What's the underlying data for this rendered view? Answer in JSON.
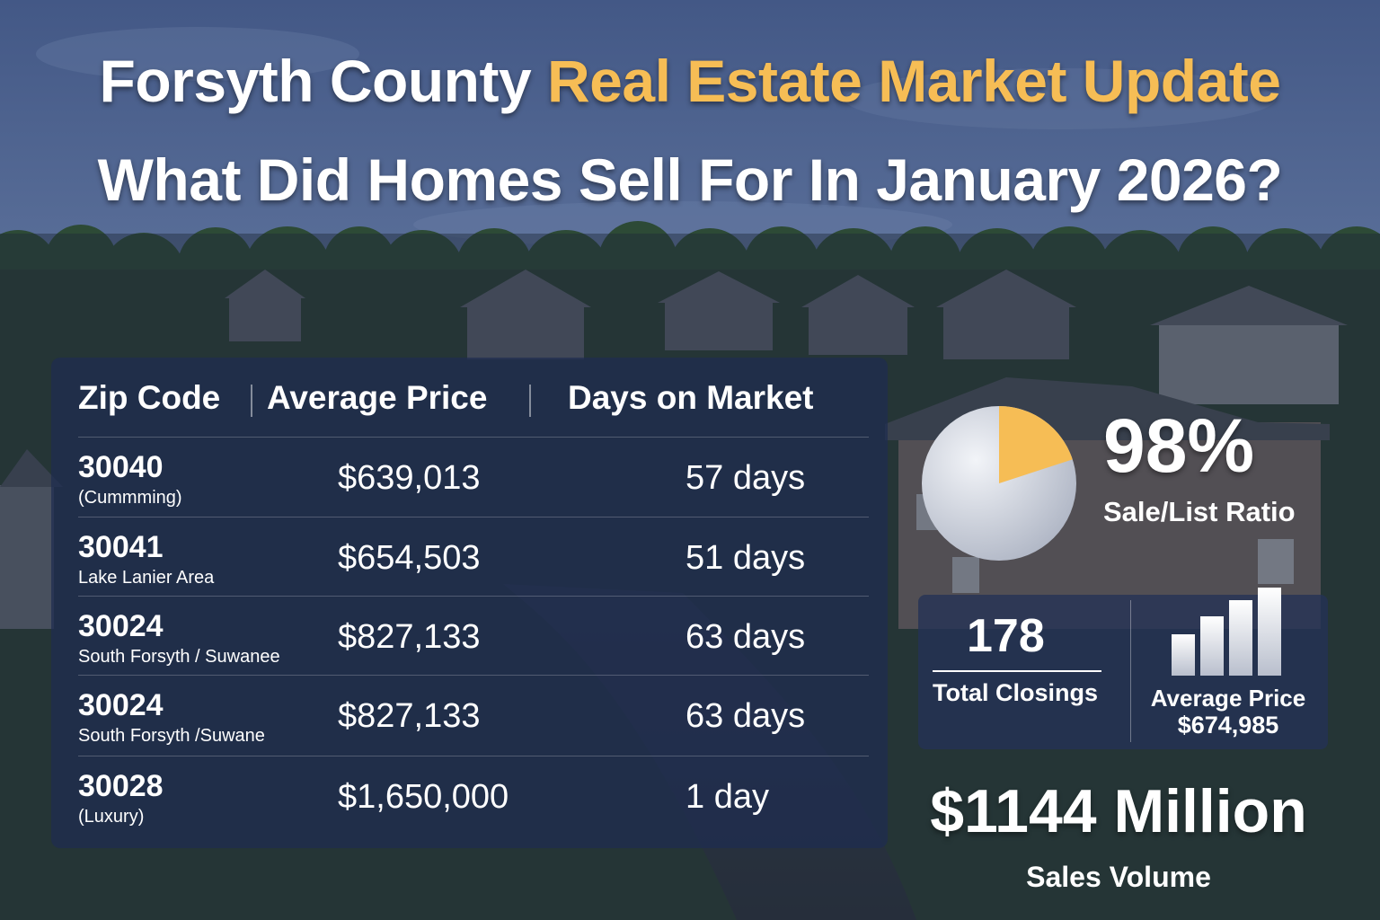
{
  "colors": {
    "accent_gold": "#f6bd55",
    "panel_navy": "#1e2c50",
    "sky_blue": "#44588a",
    "text_white": "#ffffff"
  },
  "header": {
    "line1_part1": "Forsyth County",
    "line1_part2": "Real Estate Market Update",
    "line2": "What Did Homes Sell For In January 2026?"
  },
  "table": {
    "columns": [
      "Zip Code",
      "Average Price",
      "Days on Market"
    ],
    "rows": [
      {
        "zip": "30040",
        "area": "(Cummming)",
        "price": "$639,013",
        "days": "57 days"
      },
      {
        "zip": "30041",
        "area": "Lake Lanier Area",
        "price": "$654,503",
        "days": "51 days"
      },
      {
        "zip": "30024",
        "area": "South Forsyth / Suwanee",
        "price": "$827,133",
        "days": "63 days"
      },
      {
        "zip": "30024",
        "area": "South Forsyth /Suwane",
        "price": "$827,133",
        "days": "63 days"
      },
      {
        "zip": "30028",
        "area": "(Luxury)",
        "price": "$1,650,000",
        "days": "1 day"
      }
    ]
  },
  "stats": {
    "ratio_value": "98%",
    "ratio_label": "Sale/List Ratio",
    "ratio_pie_highlight_fraction": 0.2,
    "closings_value": "178",
    "closings_label": "Total Closings",
    "avg_price_label": "Average Price",
    "avg_price_value": "$674,985",
    "bars_icon": "bar-chart-icon",
    "pie_icon": "pie-chart-icon",
    "volume_value": "$1144 Million",
    "volume_label": "Sales Volume"
  }
}
